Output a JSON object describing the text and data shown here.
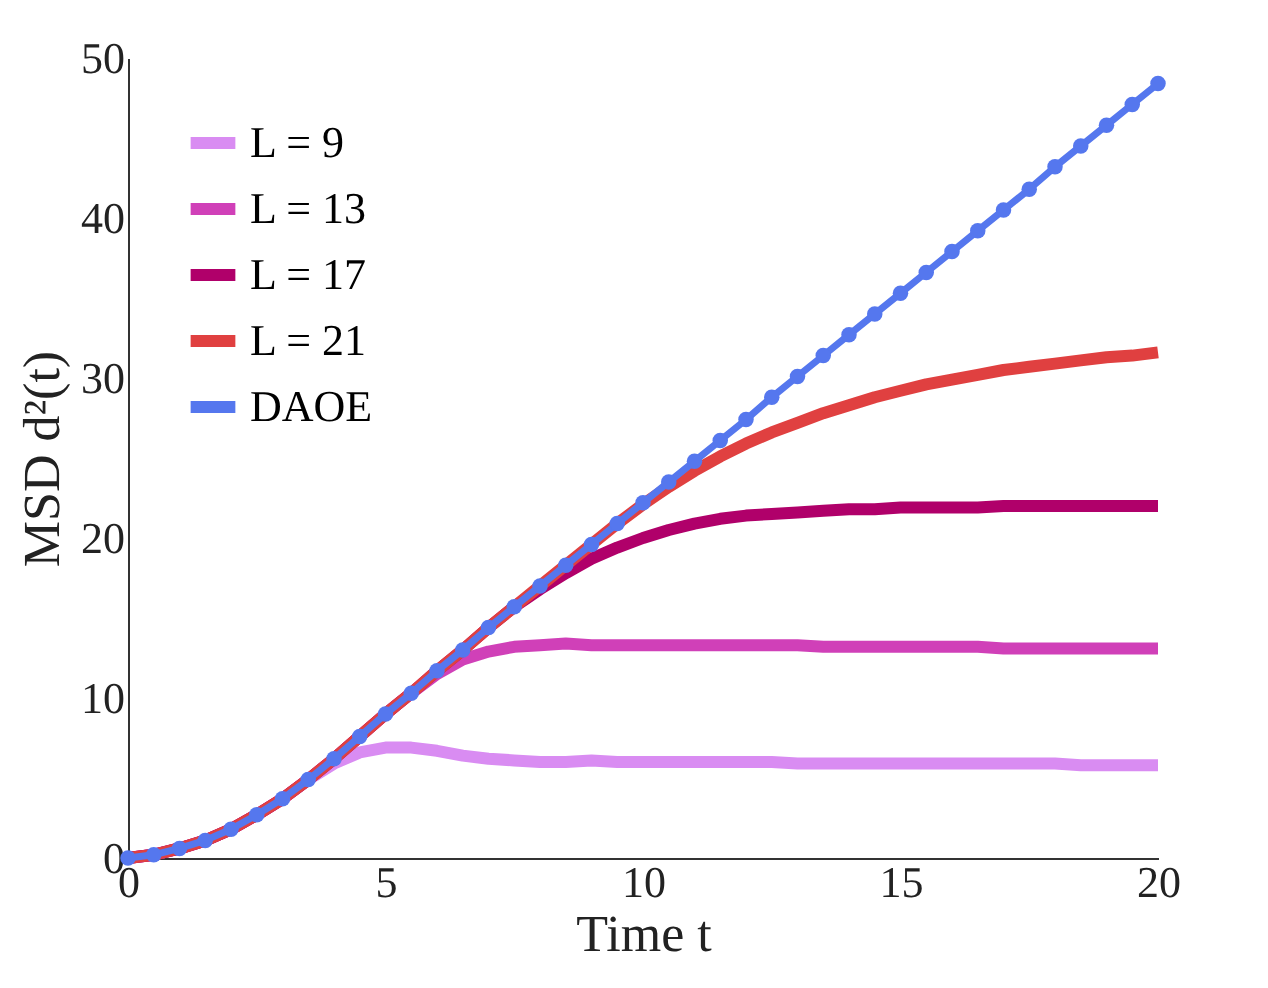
{
  "chart_data": {
    "type": "line",
    "xlabel": "Time t",
    "ylabel": "MSD d²(t)",
    "x": [
      0,
      0.5,
      1,
      1.5,
      2,
      2.5,
      3,
      3.5,
      4,
      4.5,
      5,
      5.5,
      6,
      6.5,
      7,
      7.5,
      8,
      8.5,
      9,
      9.5,
      10,
      10.5,
      11,
      11.5,
      12,
      12.5,
      13,
      13.5,
      14,
      14.5,
      15,
      15.5,
      16,
      16.5,
      17,
      17.5,
      18,
      18.5,
      19,
      19.5,
      20
    ],
    "series": [
      {
        "name": "L = 9",
        "color": "#d98cf2",
        "values": [
          0,
          0.2,
          0.6,
          1.1,
          1.8,
          2.7,
          3.7,
          4.9,
          5.9,
          6.6,
          6.9,
          6.9,
          6.7,
          6.4,
          6.2,
          6.1,
          6.0,
          6.0,
          6.1,
          6.0,
          6.0,
          6.0,
          6.0,
          6.0,
          6.0,
          6.0,
          5.9,
          5.9,
          5.9,
          5.9,
          5.9,
          5.9,
          5.9,
          5.9,
          5.9,
          5.9,
          5.9,
          5.8,
          5.8,
          5.8,
          5.8
        ]
      },
      {
        "name": "L = 13",
        "color": "#d040b8",
        "values": [
          0,
          0.2,
          0.6,
          1.1,
          1.8,
          2.7,
          3.7,
          4.9,
          6.2,
          7.6,
          9.0,
          10.3,
          11.5,
          12.4,
          12.9,
          13.2,
          13.3,
          13.4,
          13.3,
          13.3,
          13.3,
          13.3,
          13.3,
          13.3,
          13.3,
          13.3,
          13.3,
          13.2,
          13.2,
          13.2,
          13.2,
          13.2,
          13.2,
          13.2,
          13.1,
          13.1,
          13.1,
          13.1,
          13.1,
          13.1,
          13.1
        ]
      },
      {
        "name": "L = 17",
        "color": "#b0006a",
        "values": [
          0,
          0.2,
          0.6,
          1.1,
          1.8,
          2.7,
          3.7,
          4.9,
          6.2,
          7.6,
          9.0,
          10.3,
          11.7,
          13.0,
          14.4,
          15.7,
          16.8,
          17.8,
          18.7,
          19.4,
          20.0,
          20.5,
          20.9,
          21.2,
          21.4,
          21.5,
          21.6,
          21.7,
          21.8,
          21.8,
          21.9,
          21.9,
          21.9,
          21.9,
          22.0,
          22.0,
          22.0,
          22.0,
          22.0,
          22.0,
          22.0
        ]
      },
      {
        "name": "L = 21",
        "color": "#e04040",
        "values": [
          0,
          0.2,
          0.6,
          1.1,
          1.8,
          2.7,
          3.7,
          4.9,
          6.2,
          7.6,
          9.0,
          10.3,
          11.7,
          13.0,
          14.4,
          15.7,
          17.0,
          18.3,
          19.6,
          20.9,
          22.1,
          23.2,
          24.2,
          25.1,
          25.9,
          26.6,
          27.2,
          27.8,
          28.3,
          28.8,
          29.2,
          29.6,
          29.9,
          30.2,
          30.5,
          30.7,
          30.9,
          31.1,
          31.3,
          31.4,
          31.6
        ]
      },
      {
        "name": "DAOE",
        "color": "#5577ee",
        "marker": "circle",
        "values": [
          0,
          0.2,
          0.6,
          1.1,
          1.8,
          2.7,
          3.7,
          4.9,
          6.2,
          7.6,
          9.0,
          10.3,
          11.7,
          13.0,
          14.4,
          15.7,
          17.0,
          18.3,
          19.6,
          20.9,
          22.2,
          23.5,
          24.8,
          26.1,
          27.4,
          28.8,
          30.1,
          31.4,
          32.7,
          34.0,
          35.3,
          36.6,
          37.9,
          39.2,
          40.5,
          41.8,
          43.2,
          44.5,
          45.8,
          47.1,
          48.4
        ]
      }
    ],
    "xlim": [
      0,
      20
    ],
    "xticks": [
      0,
      5,
      10,
      15,
      20
    ],
    "ylim": [
      0,
      50
    ],
    "yticks": [
      0,
      10,
      20,
      30,
      40,
      50
    ],
    "legend": "top left",
    "line_style": "solid",
    "grid": false
  }
}
